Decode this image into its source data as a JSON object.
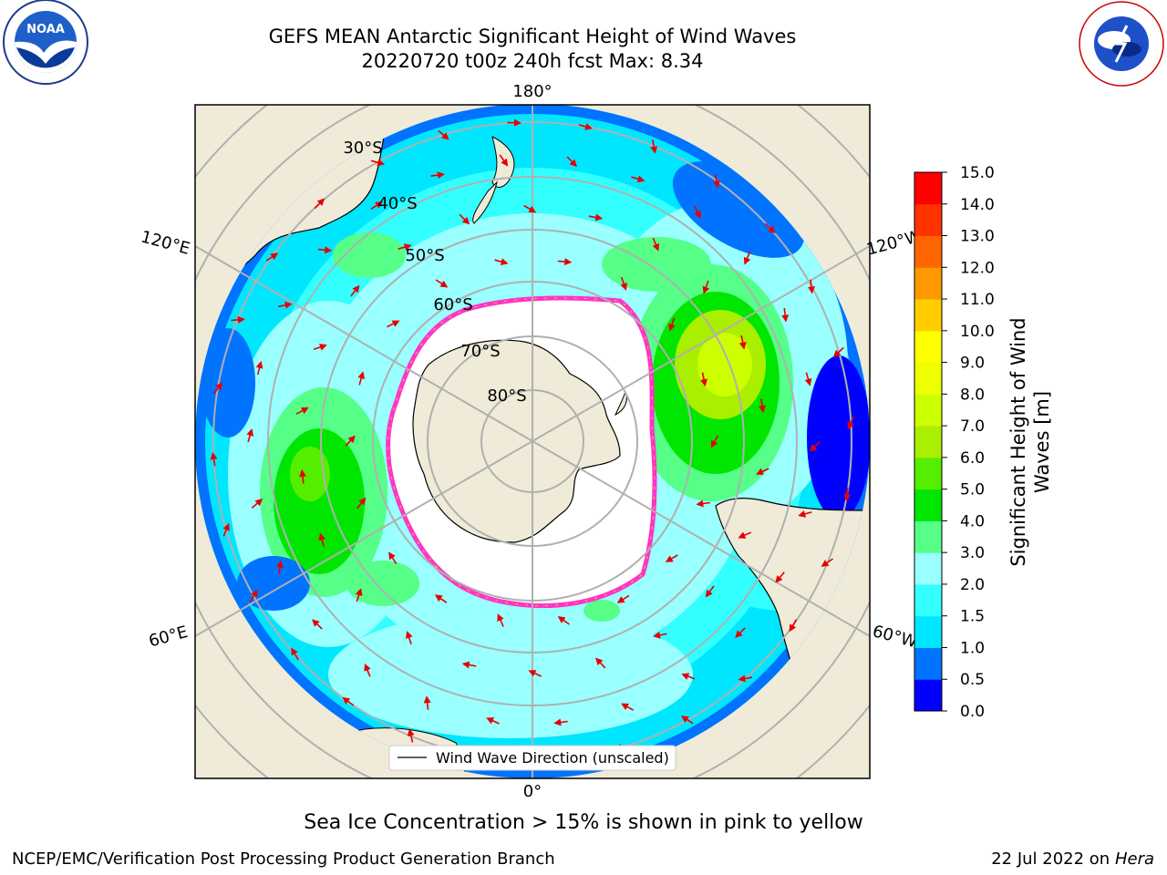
{
  "title": {
    "line1": "GEFS MEAN Antarctic Significant Height of Wind Waves",
    "line2": "20220720 t00z 240h fcst   Max: 8.34"
  },
  "logos": {
    "left": "NOAA",
    "left_ring": "NATIONAL OCEANIC AND ATMOSPHERIC ADMINISTRATION · U.S. DEPARTMENT OF COMMERCE",
    "right_ring": "NATIONAL WEATHER SERVICE"
  },
  "map": {
    "projection": "south-polar-stereographic",
    "longitude_labels": [
      "180°",
      "120°E",
      "120°W",
      "60°E",
      "60°W",
      "0°"
    ],
    "latitude_labels": [
      "30°S",
      "40°S",
      "50°S",
      "60°S",
      "70°S",
      "80°S"
    ],
    "legend": "Wind Wave Direction (unscaled)",
    "colors": {
      "land": "#efebd8",
      "ocean_low": "#00f6ff",
      "ocean_mid": "#99fbff",
      "wave_high": "#00e600",
      "ice_edge": "#ff33cc",
      "arrows": "#e60000"
    }
  },
  "colorbar": {
    "label_line1": "Significant Height of Wind",
    "label_line2": "Waves [m]",
    "ticks": [
      "0.0",
      "0.5",
      "1.0",
      "1.5",
      "2.0",
      "3.0",
      "4.0",
      "5.0",
      "6.0",
      "7.0",
      "8.0",
      "9.0",
      "10.0",
      "11.0",
      "12.0",
      "13.0",
      "14.0",
      "15.0"
    ],
    "colors": [
      "#0000ff",
      "#0073ff",
      "#00e6ff",
      "#33ffff",
      "#99ffff",
      "#55ff88",
      "#00e600",
      "#55ee00",
      "#aaee00",
      "#ccff00",
      "#eeff00",
      "#ffff00",
      "#ffcc00",
      "#ff9900",
      "#ff6600",
      "#ff3300",
      "#ff0000"
    ]
  },
  "note": "Sea Ice Concentration > 15% is shown in pink to yellow",
  "footer": {
    "left": "NCEP/EMC/Verification Post Processing Product Generation Branch",
    "right_prefix": "22 Jul 2022 on ",
    "right_italic": "Hera"
  }
}
